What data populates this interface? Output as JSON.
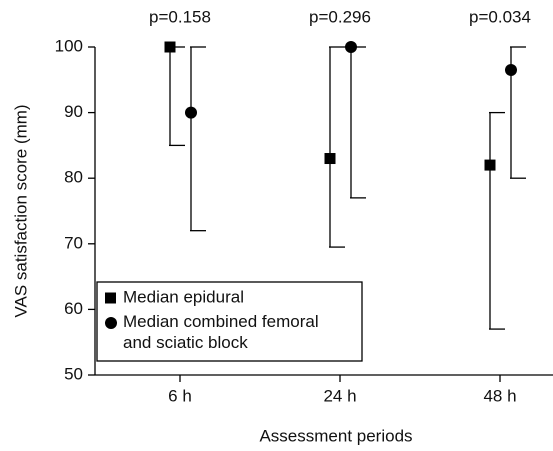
{
  "chart_data": {
    "type": "range-dot",
    "x_label": "Assessment periods",
    "y_label": "VAS satisfaction score (mm)",
    "categories": [
      "6 h",
      "24 h",
      "48 h"
    ],
    "annotations": [
      "p=0.158",
      "p=0.296",
      "p=0.034"
    ],
    "series": [
      {
        "name": "Median epidural",
        "marker": "square",
        "color": "#000000",
        "values": [
          100,
          83,
          82
        ],
        "low": [
          85,
          69.5,
          57
        ],
        "high": [
          100,
          100,
          90
        ]
      },
      {
        "name": "Median combined femoral and sciatic block",
        "marker": "circle",
        "color": "#000000",
        "values": [
          90,
          100,
          96.5
        ],
        "low": [
          72,
          77,
          80
        ],
        "high": [
          100,
          100,
          100
        ]
      }
    ],
    "ylim": [
      50,
      100
    ],
    "yticks": [
      50,
      60,
      70,
      80,
      90,
      100
    ],
    "grid": false,
    "legend": "lower left"
  }
}
